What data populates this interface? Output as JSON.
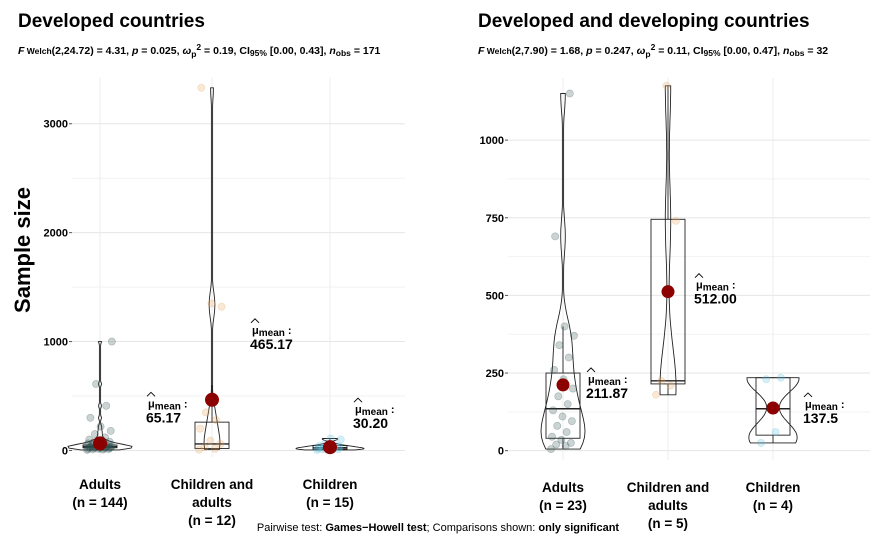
{
  "caption": {
    "prefix": "Pairwise test: ",
    "test": "Games−Howell test",
    "middle": "; Comparisons shown: ",
    "shown": "only significant"
  },
  "chart_data": [
    {
      "type": "violin-box",
      "title": "Developed countries",
      "subtitle": {
        "f": "F",
        "welch": "Welch",
        "df": "(2,24.72)",
        "f_value": "= 4.31,",
        "p_label": "p",
        "p_value": "= 0.025,",
        "omega": "ω",
        "omega_sub": "p",
        "omega_sup": "2",
        "omega_value": "= 0.19,",
        "ci": "CI",
        "ci_sub": "95%",
        "ci_value": "[0.00, 0.43],",
        "n": "n",
        "n_sub": "obs",
        "n_value": "= 171"
      },
      "ylabel": "Sample size",
      "ylim": [
        -60,
        3420
      ],
      "yticks": [
        0,
        1000,
        2000,
        3000
      ],
      "grid": true,
      "categories": [
        {
          "name": "Adults",
          "n": "(n = 144)",
          "color": "#2f4f4f",
          "mean": 65.17,
          "mean_label": "65.17",
          "box": [
            15,
            25,
            35,
            50,
            85
          ],
          "points": [
            5,
            8,
            10,
            12,
            15,
            15,
            18,
            20,
            20,
            22,
            25,
            25,
            28,
            30,
            30,
            32,
            35,
            35,
            38,
            40,
            40,
            42,
            45,
            48,
            50,
            52,
            55,
            60,
            65,
            70,
            75,
            80,
            90,
            100,
            120,
            150,
            180,
            220,
            300,
            410,
            610,
            1000
          ]
        },
        {
          "name": "Children and",
          "name2": "adults",
          "n": "(n = 12)",
          "color": "#e8a25c",
          "mean": 465.17,
          "mean_label": "465.17",
          "box": [
            8,
            18,
            60,
            260,
            600
          ],
          "points": [
            8,
            15,
            30,
            60,
            90,
            200,
            280,
            350,
            1320,
            1350,
            3330
          ]
        },
        {
          "name": "Children",
          "n": "(n = 15)",
          "color": "#5bc0de",
          "mean": 30.2,
          "mean_label": "30.20",
          "box": [
            5,
            12,
            25,
            45,
            110
          ],
          "points": [
            5,
            8,
            10,
            12,
            15,
            18,
            20,
            25,
            30,
            35,
            40,
            45,
            60,
            100,
            110
          ]
        }
      ],
      "mean_symbol": "μ",
      "mean_text": "mean",
      "mean_colon": ":"
    },
    {
      "type": "violin-box",
      "title": "Developed and developing countries",
      "subtitle": {
        "f": "F",
        "welch": "Welch",
        "df": "(2,7.90)",
        "f_value": "= 1.68,",
        "p_label": "p",
        "p_value": "= 0.247,",
        "omega": "ω",
        "omega_sub": "p",
        "omega_sup": "2",
        "omega_value": "= 0.11,",
        "ci": "CI",
        "ci_sub": "95%",
        "ci_value": "[0.00, 0.47],",
        "n": "n",
        "n_sub": "obs",
        "n_value": "= 32"
      },
      "ylim": [
        -30,
        1200
      ],
      "yticks": [
        0,
        250,
        500,
        750,
        1000
      ],
      "grid": true,
      "categories": [
        {
          "name": "Adults",
          "n": "(n = 23)",
          "color": "#2f4f4f",
          "mean": 211.87,
          "mean_label": "211.87",
          "box": [
            5,
            40,
            135,
            250,
            400
          ],
          "points": [
            5,
            15,
            20,
            25,
            35,
            45,
            60,
            80,
            95,
            110,
            130,
            150,
            175,
            200,
            230,
            260,
            300,
            340,
            370,
            400,
            690,
            1150
          ]
        },
        {
          "name": "Children and",
          "name2": "adults",
          "n": "(n = 5)",
          "color": "#e8a25c",
          "mean": 512.0,
          "mean_label": "512.00",
          "box": [
            180,
            215,
            225,
            745,
            1175
          ],
          "points": [
            180,
            210,
            225,
            740,
            1175
          ]
        },
        {
          "name": "Children",
          "n": "(n = 4)",
          "color": "#5bc0de",
          "mean": 137.5,
          "mean_label": "137.5",
          "box": [
            25,
            50,
            135,
            235,
            235
          ],
          "points": [
            25,
            60,
            230,
            235
          ]
        }
      ],
      "mean_symbol": "μ",
      "mean_text": "mean",
      "mean_colon": ":"
    }
  ]
}
